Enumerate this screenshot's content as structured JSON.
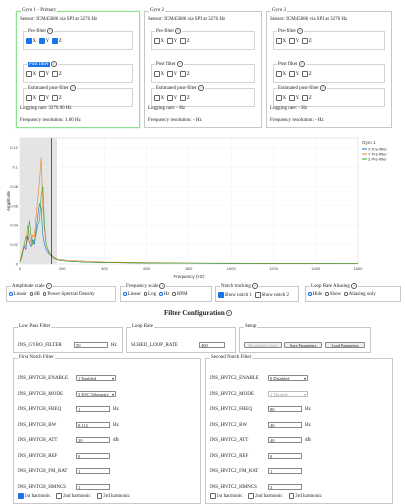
{
  "gyros": [
    {
      "title": "Gyro 1 - Primary",
      "sensor": "Sensor: ICM45686 via SPI at 3276 Hz",
      "logging": "Logging rate: 3276.90 Hz",
      "resolution": "Frequency resolution: 1.60 Hz"
    },
    {
      "title": "Gyro 2",
      "sensor": "Sensor: ICM45686 via SPI at 3276 Hz",
      "logging": "Logging rate: - Hz",
      "resolution": "Frequency resolution: - Hz"
    },
    {
      "title": "Gyro 3",
      "sensor": "Sensor: ICM45686 via SPI at 3276 Hz",
      "logging": "Logging rate: - Hz",
      "resolution": "Frequency resolution: - Hz"
    }
  ],
  "filters": {
    "pre": "Pre-filter",
    "post": "Post filter",
    "est": "Estimated post-filter",
    "x": "X",
    "y": "Y",
    "z": "Z"
  },
  "help": "?",
  "chart_data": {
    "type": "line",
    "title": "",
    "xlabel": "Frequency (Hz)",
    "ylabel": "Amplitude",
    "xlim": [
      0,
      1600
    ],
    "ylim": [
      0,
      0.13
    ],
    "x_ticks": [
      "0",
      "200",
      "400",
      "600",
      "800",
      "1000",
      "1200",
      "1400",
      "1600"
    ],
    "y_ticks": [
      "0",
      "0.02",
      "0.04",
      "0.06",
      "0.08",
      "0.1",
      "0.12"
    ],
    "legend_title": "Gyro 1",
    "series": [
      {
        "name": "X Pre-filter",
        "color": "#1f6fbf",
        "points": [
          [
            0,
            0.002
          ],
          [
            10,
            0.01
          ],
          [
            20,
            0.018
          ],
          [
            28,
            0.015
          ],
          [
            36,
            0.03
          ],
          [
            44,
            0.022
          ],
          [
            52,
            0.018
          ],
          [
            60,
            0.025
          ],
          [
            68,
            0.02
          ],
          [
            76,
            0.035
          ],
          [
            84,
            0.05
          ],
          [
            92,
            0.062
          ],
          [
            100,
            0.058
          ],
          [
            108,
            0.03
          ],
          [
            116,
            0.02
          ],
          [
            124,
            0.015
          ],
          [
            132,
            0.012
          ],
          [
            140,
            0.01
          ],
          [
            150,
            0.008
          ],
          [
            160,
            0.006
          ],
          [
            180,
            0.004
          ],
          [
            220,
            0.003
          ],
          [
            300,
            0.002
          ],
          [
            400,
            0.0015
          ],
          [
            600,
            0.001
          ],
          [
            800,
            0.0008
          ],
          [
            1000,
            0.0006
          ],
          [
            1200,
            0.0005
          ],
          [
            1400,
            0.0004
          ],
          [
            1600,
            0.0003
          ]
        ]
      },
      {
        "name": "Y Pre-filter",
        "color": "#e8821e",
        "points": [
          [
            0,
            0.003
          ],
          [
            10,
            0.012
          ],
          [
            20,
            0.02
          ],
          [
            28,
            0.018
          ],
          [
            36,
            0.04
          ],
          [
            44,
            0.03
          ],
          [
            52,
            0.022
          ],
          [
            60,
            0.03
          ],
          [
            68,
            0.028
          ],
          [
            76,
            0.05
          ],
          [
            84,
            0.068
          ],
          [
            92,
            0.085
          ],
          [
            100,
            0.11
          ],
          [
            108,
            0.06
          ],
          [
            116,
            0.035
          ],
          [
            124,
            0.02
          ],
          [
            132,
            0.015
          ],
          [
            140,
            0.012
          ],
          [
            150,
            0.009
          ],
          [
            160,
            0.007
          ],
          [
            180,
            0.005
          ],
          [
            220,
            0.004
          ],
          [
            300,
            0.003
          ],
          [
            400,
            0.002
          ],
          [
            600,
            0.0015
          ],
          [
            800,
            0.001
          ],
          [
            1000,
            0.0008
          ],
          [
            1200,
            0.0006
          ],
          [
            1400,
            0.0005
          ],
          [
            1600,
            0.0004
          ]
        ]
      },
      {
        "name": "Z Pre-filter",
        "color": "#3aa63a",
        "points": [
          [
            0,
            0.002
          ],
          [
            10,
            0.008
          ],
          [
            20,
            0.02
          ],
          [
            28,
            0.028
          ],
          [
            36,
            0.025
          ],
          [
            44,
            0.045
          ],
          [
            52,
            0.03
          ],
          [
            60,
            0.02
          ],
          [
            68,
            0.025
          ],
          [
            76,
            0.03
          ],
          [
            84,
            0.04
          ],
          [
            92,
            0.045
          ],
          [
            100,
            0.07
          ],
          [
            108,
            0.08
          ],
          [
            116,
            0.04
          ],
          [
            124,
            0.02
          ],
          [
            132,
            0.015
          ],
          [
            140,
            0.01
          ],
          [
            150,
            0.008
          ],
          [
            160,
            0.006
          ],
          [
            180,
            0.004
          ],
          [
            220,
            0.003
          ],
          [
            300,
            0.002
          ],
          [
            400,
            0.0015
          ],
          [
            600,
            0.001
          ],
          [
            800,
            0.0008
          ],
          [
            1000,
            0.0006
          ],
          [
            1200,
            0.0005
          ],
          [
            1400,
            0.0004
          ],
          [
            1600,
            0.0003
          ]
        ]
      }
    ],
    "marker_x": 150,
    "shaded_x": [
      0,
      175
    ]
  },
  "controls": {
    "amp_title": "Amplitude scale",
    "amp_opts": [
      "Linear",
      "dB",
      "Power Spectral Density"
    ],
    "freq_title": "Frequency scale",
    "freq_opts": [
      "Linear",
      "Log",
      "Hz",
      "RPM"
    ],
    "notch_title": "Notch tracking",
    "notch_opts": [
      "Show notch 1",
      "Show notch 2"
    ],
    "alias_title": "Loop Rate Aliasing",
    "alias_opts": [
      "Hide",
      "Show",
      "Aliasing only"
    ]
  },
  "config": {
    "title": "Filter Configuration",
    "lpf_legend": "Low Pass Filter",
    "gyro_filter_label": "INS_GYRO_FILTER",
    "gyro_filter_value": "50",
    "hz": "Hz",
    "loop_legend": "Loop Rate",
    "loop_label": "SCHED_LOOP_RATE",
    "loop_value": "400",
    "setup_legend": "Setup",
    "recalc": "Recalculate filters",
    "save": "Save Parameters",
    "load": "Load Parameters",
    "notch1_legend": "First Notch Filter",
    "notch2_legend": "Second Notch Filter",
    "notch1": [
      {
        "label": "INS_HNTCH_ENABLE",
        "value": "1 Enabled",
        "type": "select"
      },
      {
        "label": "INS_HNTCH_MODE",
        "value": "3 ESC Telemetry",
        "type": "select"
      },
      {
        "label": "INS_HNTCH_FREQ",
        "value": "1",
        "type": "input",
        "unit": "Hz"
      },
      {
        "label": "INS_HNTCH_BW",
        "value": "0.112",
        "type": "input",
        "unit": "Hz"
      },
      {
        "label": "INS_HNTCH_ATT",
        "value": "20",
        "type": "input",
        "unit": "dB"
      },
      {
        "label": "INS_HNTCH_REF",
        "value": "0",
        "type": "input",
        "unit": ""
      },
      {
        "label": "INS_HNTCH_FM_RAT",
        "value": "1",
        "type": "input",
        "unit": ""
      },
      {
        "label": "INS_HNTCH_HMNCS",
        "value": "1",
        "type": "input",
        "unit": ""
      }
    ],
    "notch2": [
      {
        "label": "INS_HNTC2_ENABLE",
        "value": "0 Disabled",
        "type": "select"
      },
      {
        "label": "INS_HNTC2_MODE",
        "value": "1 Throttle",
        "type": "select"
      },
      {
        "label": "INS_HNTC2_FREQ",
        "value": "80",
        "type": "input",
        "unit": "Hz"
      },
      {
        "label": "INS_HNTC2_BW",
        "value": "40",
        "type": "input",
        "unit": "Hz"
      },
      {
        "label": "INS_HNTC2_ATT",
        "value": "40",
        "type": "input",
        "unit": "dB"
      },
      {
        "label": "INS_HNTC2_REF",
        "value": "0",
        "type": "input",
        "unit": ""
      },
      {
        "label": "INS_HNTC2_FM_RAT",
        "value": "1",
        "type": "input",
        "unit": ""
      },
      {
        "label": "INS_HNTC2_HMNCS",
        "value": "3",
        "type": "input",
        "unit": ""
      }
    ],
    "harmonics": [
      "1st harmonic",
      "2nd harmonic",
      "3rd harmonic"
    ]
  }
}
